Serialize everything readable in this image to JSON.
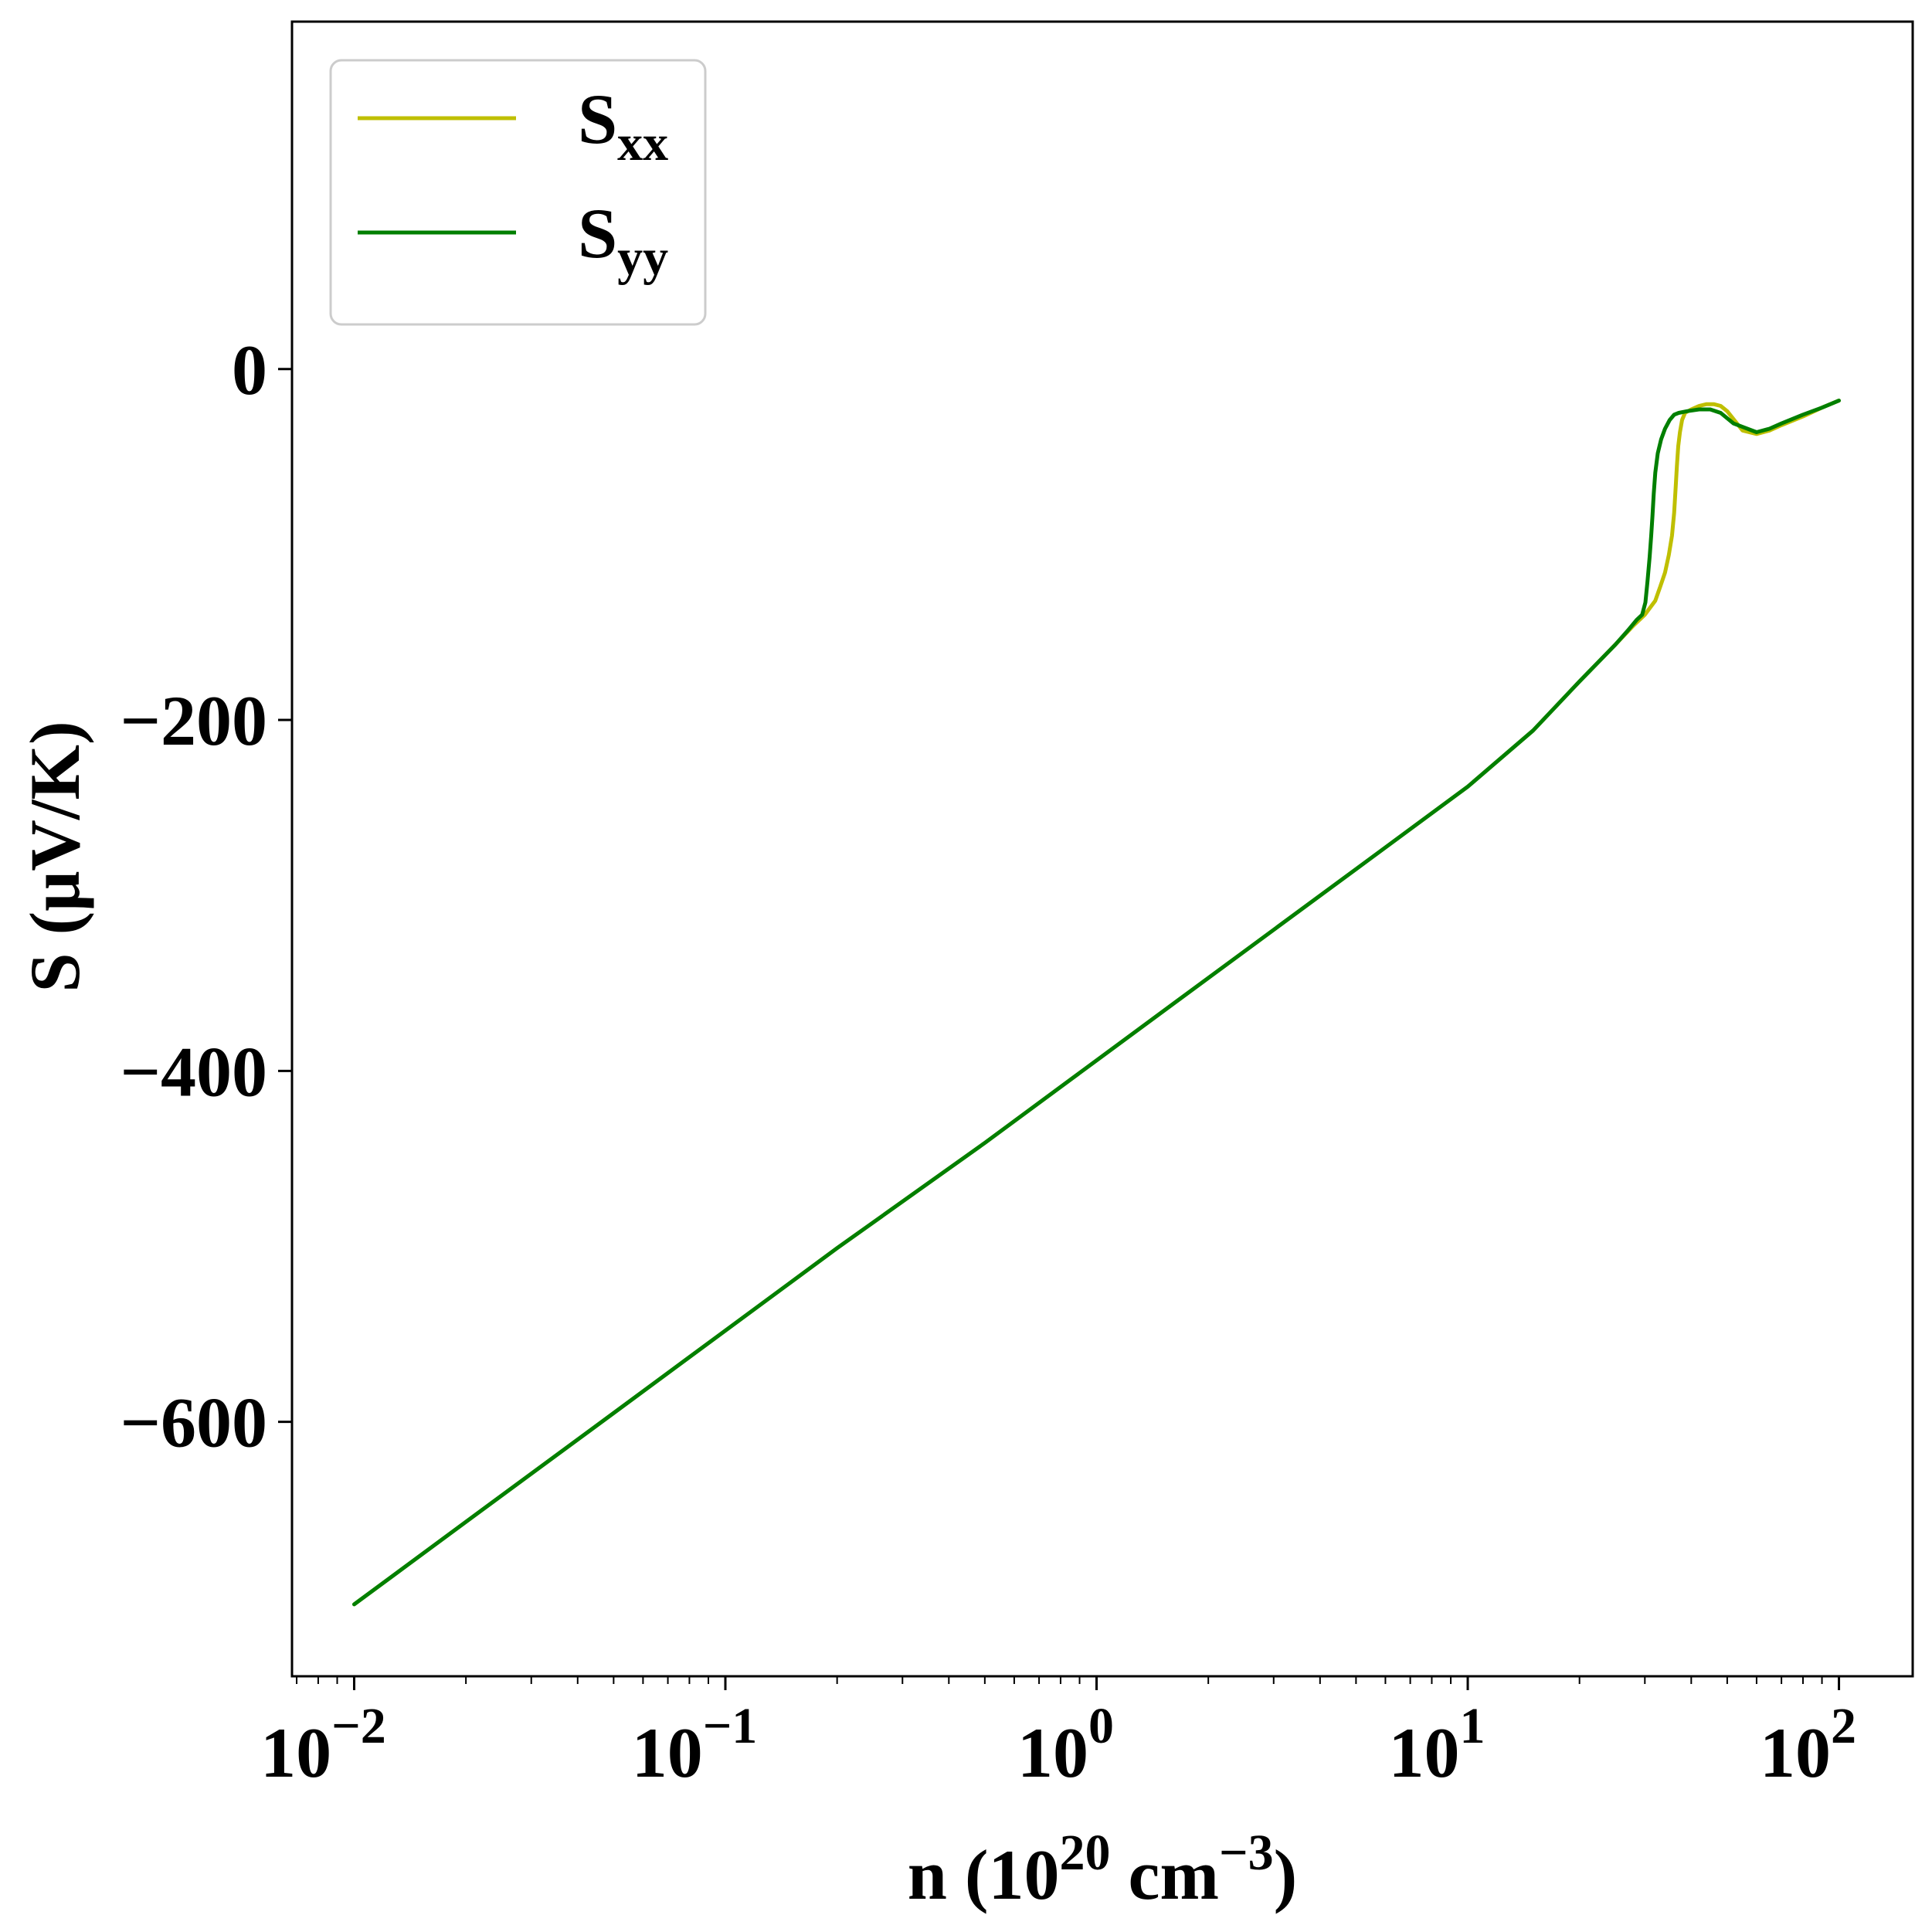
{
  "chart_data": {
    "type": "line",
    "xlabel": "n (10",
    "xlabel_exp": "20",
    "xlabel_unit": " cm",
    "xlabel_unit_exp": "−3",
    "xlabel_close": ")",
    "ylabel": "S (μV/K)",
    "x_scale": "log",
    "xlim": [
      0.0068,
      158
    ],
    "ylim": [
      -745,
      198
    ],
    "x_ticks": [
      {
        "value": 0.01,
        "base": "10",
        "exp": "−2"
      },
      {
        "value": 0.1,
        "base": "10",
        "exp": "−1"
      },
      {
        "value": 1,
        "base": "10",
        "exp": "0"
      },
      {
        "value": 10,
        "base": "10",
        "exp": "1"
      },
      {
        "value": 100,
        "base": "10",
        "exp": "2"
      }
    ],
    "y_ticks": [
      {
        "value": 0,
        "label": "0"
      },
      {
        "value": -200,
        "label": "−200"
      },
      {
        "value": -400,
        "label": "−400"
      },
      {
        "value": -600,
        "label": "−600"
      }
    ],
    "grid": false,
    "legend_position": "top-left",
    "series": [
      {
        "name": "S",
        "sub": "xx",
        "color": "#bfbf00",
        "points": [
          [
            0.01,
            -704
          ],
          [
            0.02,
            -657
          ],
          [
            0.05,
            -595
          ],
          [
            0.1,
            -548
          ],
          [
            0.2,
            -501
          ],
          [
            0.5,
            -441
          ],
          [
            1,
            -394
          ],
          [
            2,
            -347
          ],
          [
            5,
            -285
          ],
          [
            10,
            -238
          ],
          [
            15,
            -206
          ],
          [
            20,
            -178
          ],
          [
            25,
            -157
          ],
          [
            28,
            -146
          ],
          [
            30,
            -140
          ],
          [
            32,
            -132
          ],
          [
            33,
            -124
          ],
          [
            34,
            -116
          ],
          [
            34.8,
            -106
          ],
          [
            35.5,
            -95
          ],
          [
            35.97,
            -82
          ],
          [
            36.3,
            -68
          ],
          [
            36.6,
            -55
          ],
          [
            36.9,
            -44
          ],
          [
            37.3,
            -36
          ],
          [
            37.8,
            -29
          ],
          [
            38.5,
            -25
          ],
          [
            40,
            -23
          ],
          [
            42,
            -21
          ],
          [
            44,
            -20
          ],
          [
            46,
            -20
          ],
          [
            48,
            -21
          ],
          [
            50,
            -24
          ],
          [
            55,
            -35
          ],
          [
            60,
            -37
          ],
          [
            65,
            -35
          ],
          [
            70,
            -32
          ],
          [
            80,
            -27
          ],
          [
            90,
            -22
          ],
          [
            100,
            -18
          ]
        ]
      },
      {
        "name": "S",
        "sub": "yy",
        "color": "#007f00",
        "points": [
          [
            0.01,
            -704
          ],
          [
            0.02,
            -657
          ],
          [
            0.05,
            -595
          ],
          [
            0.1,
            -548
          ],
          [
            0.2,
            -501
          ],
          [
            0.5,
            -441
          ],
          [
            1,
            -394
          ],
          [
            2,
            -347
          ],
          [
            5,
            -285
          ],
          [
            10,
            -238
          ],
          [
            15,
            -206
          ],
          [
            20,
            -178
          ],
          [
            25,
            -157
          ],
          [
            27,
            -149
          ],
          [
            28.5,
            -143
          ],
          [
            29.5,
            -140
          ],
          [
            30.1,
            -133
          ],
          [
            30.5,
            -121
          ],
          [
            30.9,
            -107
          ],
          [
            31.2,
            -95
          ],
          [
            31.45,
            -84
          ],
          [
            31.7,
            -71
          ],
          [
            32.0,
            -59
          ],
          [
            32.5,
            -48
          ],
          [
            33.2,
            -40
          ],
          [
            34,
            -34
          ],
          [
            35.0,
            -29
          ],
          [
            36.0,
            -26
          ],
          [
            37,
            -25
          ],
          [
            39,
            -24
          ],
          [
            42,
            -23
          ],
          [
            45,
            -23
          ],
          [
            48,
            -25
          ],
          [
            52,
            -31
          ],
          [
            60,
            -36
          ],
          [
            65,
            -34
          ],
          [
            70,
            -31
          ],
          [
            80,
            -26
          ],
          [
            90,
            -22
          ],
          [
            100,
            -18
          ]
        ]
      }
    ]
  }
}
